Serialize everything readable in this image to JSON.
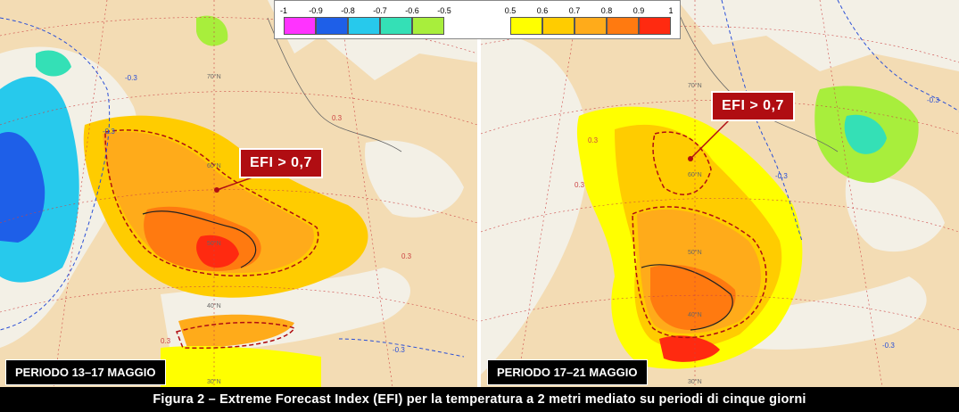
{
  "legend": {
    "negative": {
      "ticks": [
        "-1",
        "-0.9",
        "-0.8",
        "-0.7",
        "-0.6",
        "-0.5"
      ],
      "colors": [
        "#ff33ff",
        "#1e5fe8",
        "#27c9ec",
        "#34e0b6",
        "#a8ee3c"
      ]
    },
    "positive": {
      "ticks": [
        "0.5",
        "0.6",
        "0.7",
        "0.8",
        "0.9",
        "1"
      ],
      "colors": [
        "#ffff00",
        "#ffcc00",
        "#ffab1a",
        "#ff7a10",
        "#ff2a10"
      ]
    }
  },
  "panels": [
    {
      "period_label": "PERIODO 13–17 MAGGIO",
      "callout_label": "EFI > 0,7",
      "contour_labels": [
        "-0.3",
        "-0.3",
        "-0.3",
        "0.3",
        "0.3",
        "0.3"
      ],
      "grid_labels": [
        "70°N",
        "60°N",
        "50°N",
        "40°N",
        "30°N"
      ]
    },
    {
      "period_label": "PERIODO 17–21 MAGGIO",
      "callout_label": "EFI > 0,7",
      "contour_labels": [
        "-0.3",
        "-0.3",
        "0.3",
        "-0.3",
        "0.3"
      ],
      "grid_labels": [
        "70°N",
        "60°N",
        "50°N",
        "40°N",
        "30°N"
      ]
    }
  ],
  "caption": "Figura 2 – Extreme Forecast Index (EFI) per la temperatura a 2 metri mediato su periodi di cinque giorni"
}
